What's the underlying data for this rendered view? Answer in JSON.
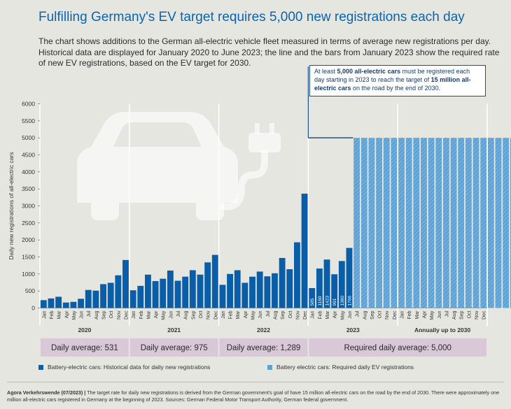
{
  "title": "Fulfilling Germany's EV target requires 5,000 new registrations each day",
  "intro": "The chart shows additions to the German all-electric vehicle fleet measured in terms of average new registrations per day. Historical data are displayed for January 2020 to June 2023; the line and the bars from January 2023 show the required rate of new EV registrations, based on the EV target for 2030.",
  "callout": {
    "p1": "At least ",
    "b1": "5,000 all-electric cars",
    "p2": " must be registered each day starting in 2023 to reach the target of ",
    "b2": "15 million all-electric cars",
    "p3": " on the road by the end of 2030."
  },
  "legend": {
    "historical": "Battery-electric cars: Historical data for daily new registrations",
    "required": "Battery electric cars: Required daily EV registrations"
  },
  "footer": {
    "source_label": "Agora Verkehrswende (07/2023) |",
    "text": " The target rate for daily new registrations is derived from the German government's goal of have 15 million all-electric cars on the road by the end of 2030. There were approximately one million all-electric cars registered in Germany at the beginning of 2023. Sources: German Federal Motor Transport Authority, German federal government."
  },
  "colors": {
    "historical": "#0a5ea8",
    "required": "#5fa3d6",
    "band": "#d8c8d8",
    "background": "#e6e6e1"
  },
  "chart_data": {
    "type": "bar",
    "ylabel": "Daily new registrations of all-electric cars",
    "ylim": [
      0,
      6000
    ],
    "yticks": [
      0,
      500,
      1000,
      1500,
      2000,
      2500,
      3000,
      3500,
      4000,
      4500,
      5000,
      5500,
      6000
    ],
    "grid": false,
    "groups": [
      {
        "label": "2020",
        "categories": [
          "Jan",
          "Feb",
          "Mar",
          "Apr",
          "May",
          "Jun",
          "Jul",
          "Aug",
          "Sep",
          "Oct",
          "Nov",
          "Dec"
        ]
      },
      {
        "label": "2021",
        "categories": [
          "Jan",
          "Feb",
          "Mar",
          "Apr",
          "May",
          "Jun",
          "Jul",
          "Aug",
          "Sep",
          "Oct",
          "Nov",
          "Dec"
        ]
      },
      {
        "label": "2022",
        "categories": [
          "Jan",
          "Feb",
          "Mar",
          "Apr",
          "May",
          "Jun",
          "Jul",
          "Aug",
          "Sep",
          "Oct",
          "Nov",
          "Dec"
        ]
      },
      {
        "label": "2023",
        "categories": [
          "Jan",
          "Feb",
          "Mar",
          "Apr",
          "May",
          "Jun",
          "Jul",
          "Aug",
          "Sep",
          "Oct",
          "Nov",
          "Dec"
        ]
      },
      {
        "label": "Annually up to 2030",
        "categories": [
          "Jan",
          "Feb",
          "Mar",
          "Apr",
          "May",
          "Jun",
          "Jul",
          "Aug",
          "Sep",
          "Oct",
          "Nov",
          "Dec"
        ]
      }
    ],
    "series": [
      {
        "name": "Battery-electric cars: Historical data for daily new registrations",
        "values": [
          230,
          280,
          330,
          160,
          180,
          270,
          530,
          510,
          700,
          740,
          960,
          1410,
          520,
          650,
          980,
          790,
          860,
          1100,
          800,
          920,
          1110,
          980,
          1340,
          1560,
          680,
          1000,
          1110,
          740,
          920,
          1070,
          930,
          1020,
          1470,
          1140,
          1930,
          3360,
          585,
          1160,
          1423,
          991,
          1380,
          1766
        ]
      },
      {
        "name": "Battery electric cars: Required daily EV registrations",
        "values": [
          5000,
          5000,
          5000,
          5000,
          5000,
          5000,
          5000,
          5000,
          5000,
          5000,
          5000,
          5000,
          5000,
          5000,
          5000,
          5000,
          5000,
          5000,
          5000,
          5000,
          5000,
          5000,
          5000,
          5000
        ]
      }
    ],
    "data_labels": [
      {
        "month": "Jan",
        "year": "2023",
        "value": "585"
      },
      {
        "month": "Feb",
        "year": "2023",
        "value": "1160"
      },
      {
        "month": "Mar",
        "year": "2023",
        "value": "1423"
      },
      {
        "month": "Apr",
        "year": "2023",
        "value": "991"
      },
      {
        "month": "May",
        "year": "2023",
        "value": "1380"
      },
      {
        "month": "Jun",
        "year": "2023",
        "value": "1766"
      }
    ],
    "daily_averages": [
      {
        "label": "Daily average: 531",
        "value": 531
      },
      {
        "label": "Daily average: 975",
        "value": 975
      },
      {
        "label": "Daily average: 1,289",
        "value": 1289
      },
      {
        "label": "Required daily average: 5,000",
        "value": 5000
      }
    ],
    "target_line": 5000
  }
}
